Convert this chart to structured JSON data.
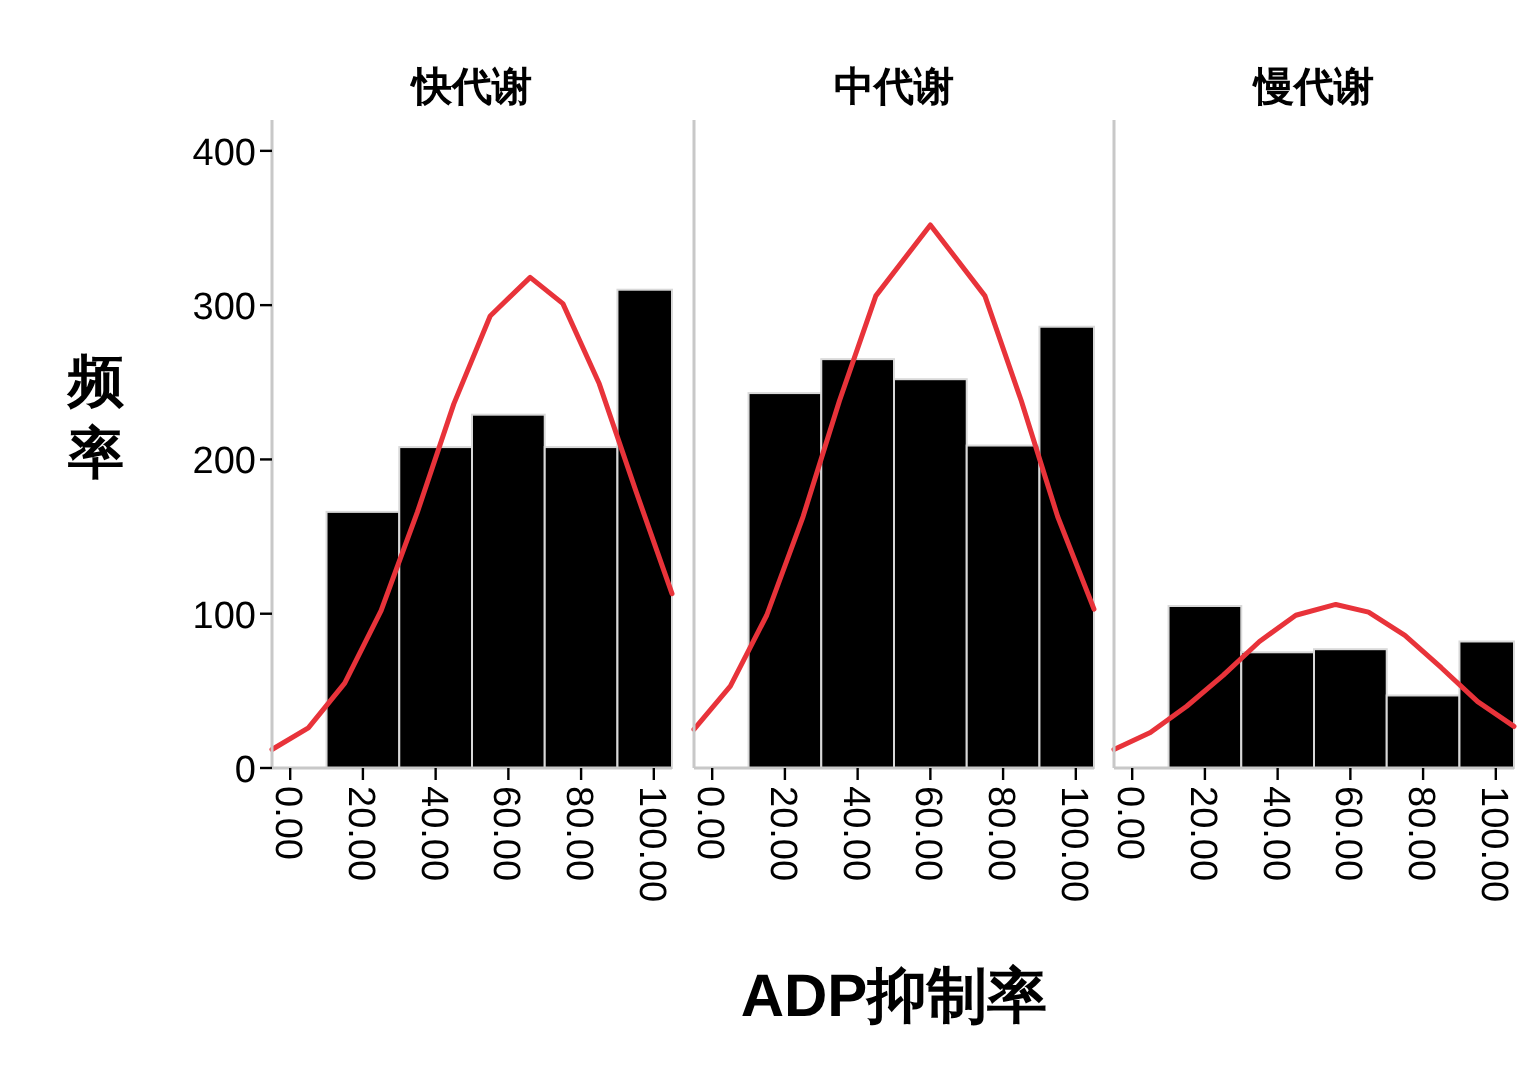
{
  "chart_data": [
    {
      "type": "histogram",
      "title": "快代谢",
      "ylabel": "频率",
      "xlim": [
        -5,
        105
      ],
      "ylim": [
        0,
        420
      ],
      "xticks": [
        {
          "value": 0,
          "label": "0.00"
        },
        {
          "value": 20,
          "label": "20.00"
        },
        {
          "value": 40,
          "label": "40.00"
        },
        {
          "value": 60,
          "label": "60.00"
        },
        {
          "value": 80,
          "label": "80.00"
        },
        {
          "value": 100,
          "label": "100.00"
        }
      ],
      "yticks": [
        0,
        100,
        200,
        300,
        400
      ],
      "grid": false,
      "series": [
        {
          "color": "#000000",
          "bins": [
            10,
            30,
            50,
            70,
            90,
            105
          ],
          "values": [
            166,
            208,
            229,
            208,
            310
          ]
        },
        {
          "type": "line",
          "color": "#e8333a",
          "x": [
            -5,
            5,
            15,
            25,
            35,
            45,
            55,
            66,
            75,
            85,
            95,
            105
          ],
          "values": [
            12,
            26,
            55,
            102,
            166,
            236,
            293,
            318,
            301,
            249,
            180,
            113
          ]
        }
      ]
    },
    {
      "type": "histogram",
      "title": "中代谢",
      "xlabel": "ADP抑制率",
      "xlim": [
        -5,
        105
      ],
      "ylim": [
        0,
        420
      ],
      "xticks": [
        {
          "value": 0,
          "label": "0.00"
        },
        {
          "value": 20,
          "label": "20.00"
        },
        {
          "value": 40,
          "label": "40.00"
        },
        {
          "value": 60,
          "label": "60.00"
        },
        {
          "value": 80,
          "label": "80.00"
        },
        {
          "value": 100,
          "label": "100.00"
        }
      ],
      "yticks": [
        0,
        100,
        200,
        300,
        400
      ],
      "tick_labels": "x",
      "grid": false,
      "series": [
        {
          "color": "#000000",
          "bins": [
            10,
            30,
            50,
            70,
            90,
            105
          ],
          "values": [
            243,
            265,
            252,
            209,
            286
          ]
        },
        {
          "type": "line",
          "color": "#e8333a",
          "x": [
            -5,
            5,
            15,
            25,
            35,
            45,
            60,
            75,
            85,
            95,
            105
          ],
          "values": [
            25,
            53,
            99,
            163,
            238,
            306,
            352,
            306,
            238,
            163,
            103
          ]
        }
      ]
    },
    {
      "type": "histogram",
      "title": "慢代谢",
      "xlim": [
        -5,
        105
      ],
      "ylim": [
        0,
        420
      ],
      "xticks": [
        {
          "value": 0,
          "label": "0.00"
        },
        {
          "value": 20,
          "label": "20.00"
        },
        {
          "value": 40,
          "label": "40.00"
        },
        {
          "value": 60,
          "label": "60.00"
        },
        {
          "value": 80,
          "label": "80.00"
        },
        {
          "value": 100,
          "label": "100.00"
        }
      ],
      "yticks": [
        0,
        100,
        200,
        300,
        400
      ],
      "tick_labels": "x",
      "grid": false,
      "series": [
        {
          "color": "#000000",
          "bins": [
            10,
            30,
            50,
            70,
            90,
            105
          ],
          "values": [
            105,
            75,
            77,
            47,
            82
          ]
        },
        {
          "type": "line",
          "color": "#e8333a",
          "x": [
            -5,
            5,
            15,
            25,
            35,
            45,
            56,
            65,
            75,
            85,
            95,
            105
          ],
          "values": [
            12,
            23,
            40,
            60,
            82,
            99,
            106,
            101,
            86,
            65,
            43,
            27
          ]
        }
      ]
    }
  ]
}
